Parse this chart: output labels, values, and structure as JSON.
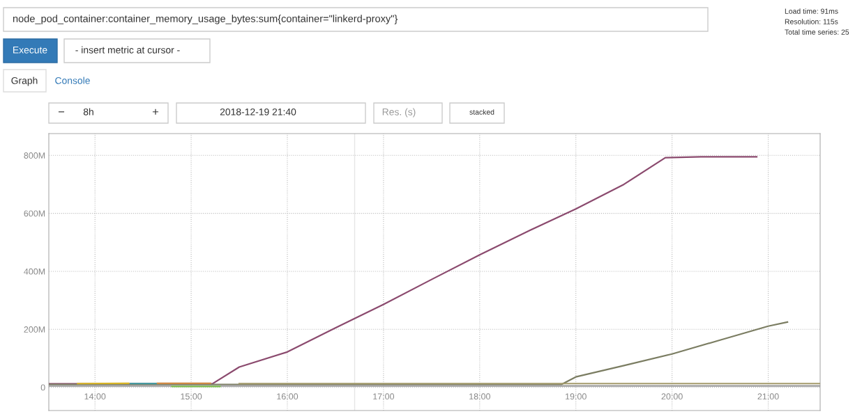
{
  "chart_data": {
    "type": "line",
    "title": "node_pod_container:container_memory_usage_bytes:sum{container=\"linkerd-proxy\"}",
    "annotations": [
      "Load time: 91ms",
      "Resolution: 115s",
      "Total time series: 25",
      "Execute",
      "- insert metric at cursor -",
      "Graph",
      "Console",
      "−",
      "8h",
      "+",
      "2018-12-19 21:40",
      "Res. (s)",
      "stacked"
    ],
    "xlim": [
      13.52,
      21.54
    ],
    "ylim": [
      -80,
      875
    ],
    "xticks": [
      {
        "value": 14,
        "label": "14:00"
      },
      {
        "value": 15,
        "label": "15:00"
      },
      {
        "value": 16,
        "label": "16:00"
      },
      {
        "value": 17,
        "label": "17:00"
      },
      {
        "value": 18,
        "label": "18:00"
      },
      {
        "value": 19,
        "label": "19:00"
      },
      {
        "value": 20,
        "label": "20:00"
      },
      {
        "value": 21,
        "label": "21:00"
      }
    ],
    "yticks": [
      {
        "value": 0,
        "label": "0"
      },
      {
        "value": 200,
        "label": "200M"
      },
      {
        "value": 400,
        "label": "400M"
      },
      {
        "value": 600,
        "label": "600M"
      },
      {
        "value": 800,
        "label": "800M"
      }
    ],
    "grid": true,
    "marker": "none",
    "line_style": "solid",
    "ref_lines": [
      {
        "axis": "x",
        "value": 16.7,
        "color": "#e6e6e6"
      }
    ],
    "series": [
      {
        "color": "#8b4a6e",
        "x": [
          13.52,
          15.22,
          15.5,
          16,
          16.5,
          17,
          17.5,
          18,
          18.5,
          19,
          19.5,
          19.93,
          20.3,
          20.88
        ],
        "values": [
          12,
          12,
          70,
          122,
          205,
          286,
          372,
          457,
          538,
          615,
          700,
          792,
          795,
          795
        ]
      },
      {
        "color": "#7b7d62",
        "x": [
          13.52,
          18.85,
          19,
          19.5,
          20,
          20.5,
          21,
          21.2
        ],
        "values": [
          10,
          10,
          36,
          75,
          115,
          163,
          211,
          225
        ]
      },
      {
        "color": "#d9b526",
        "x": [
          13.82,
          14.35
        ],
        "values": [
          13,
          14
        ]
      },
      {
        "color": "#3a9aa0",
        "x": [
          14.37,
          14.65
        ],
        "values": [
          13,
          13
        ]
      },
      {
        "color": "#d08a45",
        "x": [
          14.65,
          15.2
        ],
        "values": [
          14,
          14
        ]
      },
      {
        "color": "#a39a6a",
        "x": [
          15.5,
          21.54
        ],
        "values": [
          13,
          13
        ]
      },
      {
        "color": "#9a9a9a",
        "x": [
          13.52,
          21.54
        ],
        "values": [
          5,
          5
        ]
      },
      {
        "color": "#7fbf50",
        "x": [
          14.8,
          15.3
        ],
        "values": [
          3,
          3
        ]
      }
    ]
  }
}
